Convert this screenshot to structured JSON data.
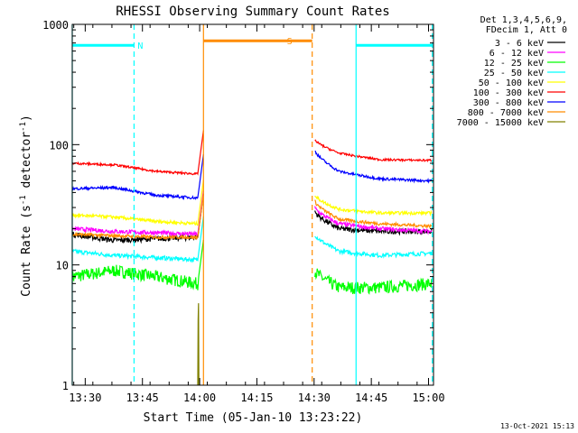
{
  "chart_data": {
    "type": "line",
    "title": "RHESSI Observing Summary Count Rates",
    "xlabel": "Start Time (05-Jan-10 13:23:22)",
    "ylabel_pre": "Count Rate (s",
    "ylabel_sup1": "-1",
    "ylabel_mid": " detector",
    "ylabel_sup2": "-1",
    "ylabel_post": ")",
    "yscale": "log",
    "ylim": [
      1,
      1000
    ],
    "xlim_minutes": [
      -3.4,
      91.3
    ],
    "x_ticks": [
      {
        "m": 0,
        "label": "13:30"
      },
      {
        "m": 15,
        "label": "13:45"
      },
      {
        "m": 30,
        "label": "14:00"
      },
      {
        "m": 45,
        "label": "14:15"
      },
      {
        "m": 60,
        "label": "14:30"
      },
      {
        "m": 75,
        "label": "14:45"
      },
      {
        "m": 90,
        "label": "15:00"
      }
    ],
    "y_ticks": [
      {
        "v": 1,
        "label": "1"
      },
      {
        "v": 10,
        "label": "10"
      },
      {
        "v": 100,
        "label": "100"
      },
      {
        "v": 1000,
        "label": "1000"
      }
    ],
    "legend_header": [
      "Det 1,3,4,5,6,9,",
      "FDecim 1, Att 0"
    ],
    "series": [
      {
        "name": "3 - 6 keV",
        "color": "#000000",
        "pre": [
          18,
          16,
          16.5,
          17
        ],
        "post": [
          28,
          20,
          19,
          19
        ],
        "noise": 0.05
      },
      {
        "name": "6 - 12 keV",
        "color": "#ff00ff",
        "pre": [
          20,
          19,
          18.5,
          18
        ],
        "post": [
          30,
          22,
          20,
          19
        ],
        "noise": 0.04
      },
      {
        "name": "12 - 25 keV",
        "color": "#00ff00",
        "pre": [
          8,
          9,
          8,
          7
        ],
        "post": [
          9,
          6.5,
          6.5,
          7
        ],
        "noise": 0.12
      },
      {
        "name": "25 - 50 keV",
        "color": "#00ffff",
        "pre": [
          13,
          12,
          11.5,
          11
        ],
        "post": [
          18,
          13,
          12,
          12.5
        ],
        "noise": 0.04
      },
      {
        "name": "50 - 100 keV",
        "color": "#ffff00",
        "pre": [
          26,
          25,
          23,
          22
        ],
        "post": [
          38,
          29,
          27,
          27
        ],
        "noise": 0.03
      },
      {
        "name": "100 - 300 keV",
        "color": "#ff0000",
        "pre": [
          70,
          68,
          60,
          57
        ],
        "post": [
          110,
          85,
          75,
          74
        ],
        "noise": 0.02
      },
      {
        "name": "300 - 800 keV",
        "color": "#0000ff",
        "pre": [
          43,
          44,
          38,
          36
        ],
        "post": [
          90,
          60,
          52,
          50
        ],
        "noise": 0.025
      },
      {
        "name": "800 - 7000 keV",
        "color": "#ff8c00",
        "pre": [
          18,
          17.5,
          17,
          17
        ],
        "post": [
          34,
          24,
          22,
          21
        ],
        "noise": 0.03
      },
      {
        "name": "7000 - 15000 keV",
        "color": "#808000",
        "pre": [],
        "post": [],
        "noise": 0
      }
    ],
    "annotations": [
      {
        "label": "N",
        "color": "#00ffff",
        "bar_m": [
          -3.4,
          12.8
        ],
        "bar_v": 670,
        "start_m": -3.4,
        "end_m": 12.8
      },
      {
        "label": "S",
        "color": "#ff8c00",
        "bar_m": [
          31,
          59.5
        ],
        "bar_v": 730,
        "start_m": 31,
        "end_m": 59.5
      },
      {
        "label": "",
        "color": "#00ffff",
        "bar_m": [
          71,
          91
        ],
        "bar_v": 670,
        "start_m": 71,
        "end_m": 91
      }
    ]
  },
  "footer_date": "13-Oct-2021 15:13"
}
